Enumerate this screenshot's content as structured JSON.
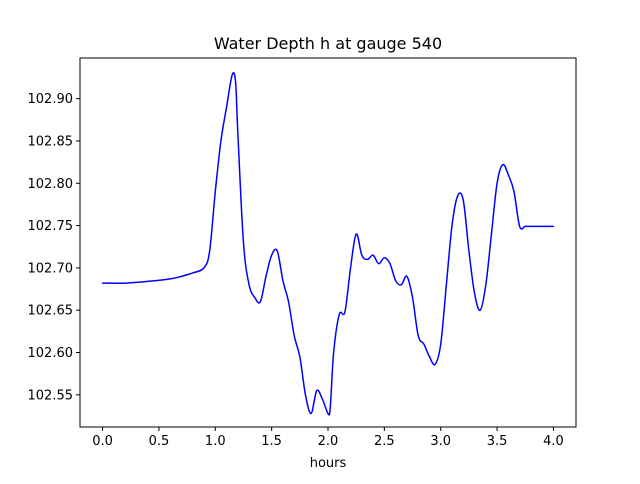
{
  "chart_data": {
    "type": "line",
    "title": "Water Depth h at gauge 540",
    "xlabel": "hours",
    "ylabel": "",
    "xlim": [
      -0.2,
      4.2
    ],
    "ylim": [
      102.512,
      102.948
    ],
    "x_ticks": [
      0.0,
      0.5,
      1.0,
      1.5,
      2.0,
      2.5,
      3.0,
      3.5,
      4.0
    ],
    "x_tick_labels": [
      "0.0",
      "0.5",
      "1.0",
      "1.5",
      "2.0",
      "2.5",
      "3.0",
      "3.5",
      "4.0"
    ],
    "y_ticks": [
      102.55,
      102.6,
      102.65,
      102.7,
      102.75,
      102.8,
      102.85,
      102.9
    ],
    "y_tick_labels": [
      "102.55",
      "102.60",
      "102.65",
      "102.70",
      "102.75",
      "102.80",
      "102.85",
      "102.90"
    ],
    "grid": false,
    "legend": "none",
    "series": [
      {
        "color": "#0000ff",
        "x": [
          0.0,
          0.2,
          0.4,
          0.6,
          0.7,
          0.8,
          0.9,
          0.95,
          1.0,
          1.05,
          1.1,
          1.15,
          1.18,
          1.2,
          1.25,
          1.3,
          1.35,
          1.4,
          1.45,
          1.5,
          1.55,
          1.6,
          1.65,
          1.7,
          1.75,
          1.8,
          1.85,
          1.9,
          1.95,
          2.0,
          2.02,
          2.05,
          2.1,
          2.15,
          2.2,
          2.25,
          2.3,
          2.35,
          2.4,
          2.45,
          2.5,
          2.55,
          2.6,
          2.65,
          2.7,
          2.75,
          2.8,
          2.85,
          2.9,
          2.95,
          3.0,
          3.05,
          3.1,
          3.15,
          3.2,
          3.25,
          3.3,
          3.35,
          3.4,
          3.45,
          3.5,
          3.55,
          3.6,
          3.65,
          3.7,
          3.75,
          3.8,
          3.85,
          3.9,
          3.95,
          4.0
        ],
        "y": [
          102.682,
          102.682,
          102.684,
          102.687,
          102.69,
          102.694,
          102.7,
          102.72,
          102.79,
          102.85,
          102.89,
          102.928,
          102.92,
          102.86,
          102.73,
          102.68,
          102.665,
          102.66,
          102.69,
          102.715,
          102.72,
          102.685,
          102.66,
          102.62,
          102.595,
          102.55,
          102.528,
          102.555,
          102.545,
          102.528,
          102.535,
          102.6,
          102.645,
          102.648,
          102.7,
          102.74,
          102.715,
          102.71,
          102.715,
          102.705,
          102.712,
          102.705,
          102.685,
          102.68,
          102.69,
          102.665,
          102.62,
          102.61,
          102.595,
          102.586,
          102.61,
          102.68,
          102.75,
          102.785,
          102.78,
          102.72,
          102.67,
          102.65,
          102.68,
          102.74,
          102.8,
          102.822,
          102.81,
          102.79,
          102.749,
          102.749,
          102.749,
          102.749,
          102.749,
          102.749,
          102.749
        ]
      }
    ]
  }
}
